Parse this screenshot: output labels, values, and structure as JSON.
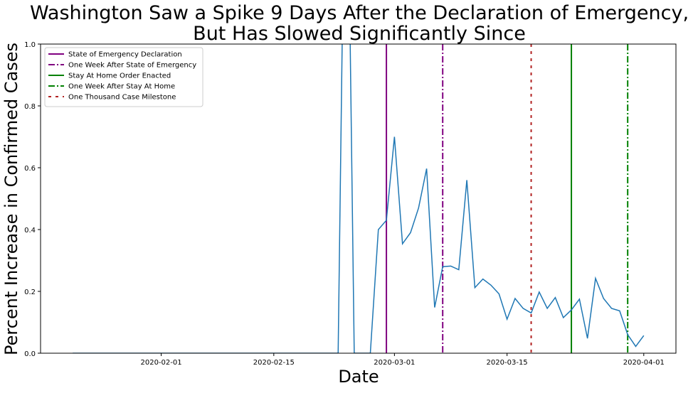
{
  "chart_data": {
    "type": "line",
    "title": [
      "Washington Saw a Spike 9 Days After the Declaration of Emergency,",
      "But Has Slowed Significantly Since"
    ],
    "xlabel": "Date",
    "ylabel": "Percent Increase in Confirmed Cases",
    "xlim": [
      "2020-01-17",
      "2020-04-05"
    ],
    "ylim": [
      0,
      1
    ],
    "xticks": [
      "2020-02-01",
      "2020-02-15",
      "2020-03-01",
      "2020-03-15",
      "2020-04-01"
    ],
    "yticks": [
      {
        "value": 0,
        "label": "0.0"
      },
      0.2,
      0.4,
      0.6,
      0.8,
      {
        "value": 1,
        "label": "1.0"
      }
    ],
    "x": [
      "2020-01-21",
      "2020-01-22",
      "2020-01-23",
      "2020-01-24",
      "2020-01-25",
      "2020-01-26",
      "2020-01-27",
      "2020-01-28",
      "2020-01-29",
      "2020-01-30",
      "2020-01-31",
      "2020-02-01",
      "2020-02-02",
      "2020-02-03",
      "2020-02-04",
      "2020-02-05",
      "2020-02-06",
      "2020-02-07",
      "2020-02-08",
      "2020-02-09",
      "2020-02-10",
      "2020-02-11",
      "2020-02-12",
      "2020-02-13",
      "2020-02-14",
      "2020-02-15",
      "2020-02-16",
      "2020-02-17",
      "2020-02-18",
      "2020-02-19",
      "2020-02-20",
      "2020-02-21",
      "2020-02-22",
      "2020-02-23",
      "2020-02-24",
      "2020-02-25",
      "2020-02-26",
      "2020-02-27",
      "2020-02-28",
      "2020-02-29",
      "2020-03-01",
      "2020-03-02",
      "2020-03-03",
      "2020-03-04",
      "2020-03-05",
      "2020-03-06",
      "2020-03-07",
      "2020-03-08",
      "2020-03-09",
      "2020-03-10",
      "2020-03-11",
      "2020-03-12",
      "2020-03-13",
      "2020-03-14",
      "2020-03-15",
      "2020-03-16",
      "2020-03-17",
      "2020-03-18",
      "2020-03-19",
      "2020-03-20",
      "2020-03-21",
      "2020-03-22",
      "2020-03-23",
      "2020-03-24",
      "2020-03-25",
      "2020-03-26",
      "2020-03-27",
      "2020-03-28",
      "2020-03-29",
      "2020-03-30",
      "2020-03-31",
      "2020-04-01"
    ],
    "series": [
      {
        "color": "#1f77b4",
        "values": [
          0,
          0,
          0,
          0,
          0,
          0,
          0,
          0,
          0,
          0,
          0,
          0,
          0,
          0,
          0,
          0,
          0,
          0,
          0,
          0,
          0,
          0,
          0,
          0,
          0,
          0,
          0,
          0,
          0,
          0,
          0,
          0,
          0,
          0,
          2.0,
          0,
          0,
          0,
          0.4,
          0.43,
          0.7,
          0.354,
          0.39,
          0.47,
          0.597,
          0.148,
          0.28,
          0.282,
          0.27,
          0.56,
          0.212,
          0.24,
          0.22,
          0.192,
          0.11,
          0.177,
          0.145,
          0.13,
          0.198,
          0.145,
          0.18,
          0.115,
          0.14,
          0.175,
          0.048,
          0.242,
          0.177,
          0.145,
          0.137,
          0.06,
          0.022,
          0.057
        ]
      }
    ],
    "vlines": [
      {
        "name": "State of Emergency Declaration",
        "x": "2020-02-29",
        "color": "#800080",
        "style": "solid"
      },
      {
        "name": "One Week After State of Emergency",
        "x": "2020-03-07",
        "color": "#800080",
        "style": "dashdot"
      },
      {
        "name": "Stay At Home Order Enacted",
        "x": "2020-03-23",
        "color": "#008000",
        "style": "solid"
      },
      {
        "name": "One Week After Stay At Home",
        "x": "2020-03-30",
        "color": "#008000",
        "style": "dashdot"
      },
      {
        "name": "One Thousand Case Milestone",
        "x": "2020-03-18",
        "color": "#b22222",
        "style": "dotted"
      }
    ],
    "legend": "upper left"
  }
}
